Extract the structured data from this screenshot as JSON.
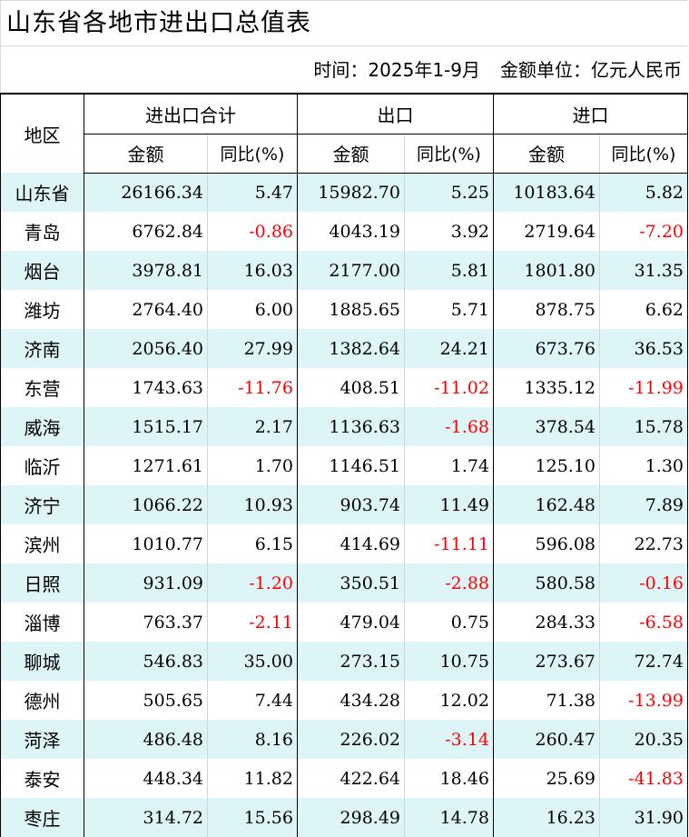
{
  "title": "山东省各地市进出口总值表",
  "subtitle": {
    "time": "时间：2025年1-9月",
    "unit": "金额单位：亿元人民币"
  },
  "headers": {
    "region": "地区",
    "total_group": "进出口合计",
    "export_group": "出口",
    "import_group": "进口",
    "amount": "金额",
    "yoy": "同比(%)"
  },
  "rows": [
    {
      "region": "山东省",
      "total": "26166.34",
      "total_yoy": "5.47",
      "export": "15982.70",
      "export_yoy": "5.25",
      "import": "10183.64",
      "import_yoy": "5.82"
    },
    {
      "region": "青岛",
      "total": "6762.84",
      "total_yoy": "-0.86",
      "export": "4043.19",
      "export_yoy": "3.92",
      "import": "2719.64",
      "import_yoy": "-7.20"
    },
    {
      "region": "烟台",
      "total": "3978.81",
      "total_yoy": "16.03",
      "export": "2177.00",
      "export_yoy": "5.81",
      "import": "1801.80",
      "import_yoy": "31.35"
    },
    {
      "region": "潍坊",
      "total": "2764.40",
      "total_yoy": "6.00",
      "export": "1885.65",
      "export_yoy": "5.71",
      "import": "878.75",
      "import_yoy": "6.62"
    },
    {
      "region": "济南",
      "total": "2056.40",
      "total_yoy": "27.99",
      "export": "1382.64",
      "export_yoy": "24.21",
      "import": "673.76",
      "import_yoy": "36.53"
    },
    {
      "region": "东营",
      "total": "1743.63",
      "total_yoy": "-11.76",
      "export": "408.51",
      "export_yoy": "-11.02",
      "import": "1335.12",
      "import_yoy": "-11.99"
    },
    {
      "region": "威海",
      "total": "1515.17",
      "total_yoy": "2.17",
      "export": "1136.63",
      "export_yoy": "-1.68",
      "import": "378.54",
      "import_yoy": "15.78"
    },
    {
      "region": "临沂",
      "total": "1271.61",
      "total_yoy": "1.70",
      "export": "1146.51",
      "export_yoy": "1.74",
      "import": "125.10",
      "import_yoy": "1.30"
    },
    {
      "region": "济宁",
      "total": "1066.22",
      "total_yoy": "10.93",
      "export": "903.74",
      "export_yoy": "11.49",
      "import": "162.48",
      "import_yoy": "7.89"
    },
    {
      "region": "滨州",
      "total": "1010.77",
      "total_yoy": "6.15",
      "export": "414.69",
      "export_yoy": "-11.11",
      "import": "596.08",
      "import_yoy": "22.73"
    },
    {
      "region": "日照",
      "total": "931.09",
      "total_yoy": "-1.20",
      "export": "350.51",
      "export_yoy": "-2.88",
      "import": "580.58",
      "import_yoy": "-0.16"
    },
    {
      "region": "淄博",
      "total": "763.37",
      "total_yoy": "-2.11",
      "export": "479.04",
      "export_yoy": "0.75",
      "import": "284.33",
      "import_yoy": "-6.58"
    },
    {
      "region": "聊城",
      "total": "546.83",
      "total_yoy": "35.00",
      "export": "273.15",
      "export_yoy": "10.75",
      "import": "273.67",
      "import_yoy": "72.74"
    },
    {
      "region": "德州",
      "total": "505.65",
      "total_yoy": "7.44",
      "export": "434.28",
      "export_yoy": "12.02",
      "import": "71.38",
      "import_yoy": "-13.99"
    },
    {
      "region": "菏泽",
      "total": "486.48",
      "total_yoy": "8.16",
      "export": "226.02",
      "export_yoy": "-3.14",
      "import": "260.47",
      "import_yoy": "20.35"
    },
    {
      "region": "泰安",
      "total": "448.34",
      "total_yoy": "11.82",
      "export": "422.64",
      "export_yoy": "18.46",
      "import": "25.69",
      "import_yoy": "-41.83"
    },
    {
      "region": "枣庄",
      "total": "314.72",
      "total_yoy": "15.56",
      "export": "298.49",
      "export_yoy": "14.78",
      "import": "16.23",
      "import_yoy": "31.90"
    }
  ],
  "colors": {
    "negative": "#ff0000",
    "stripe": "#ddf5f7"
  }
}
